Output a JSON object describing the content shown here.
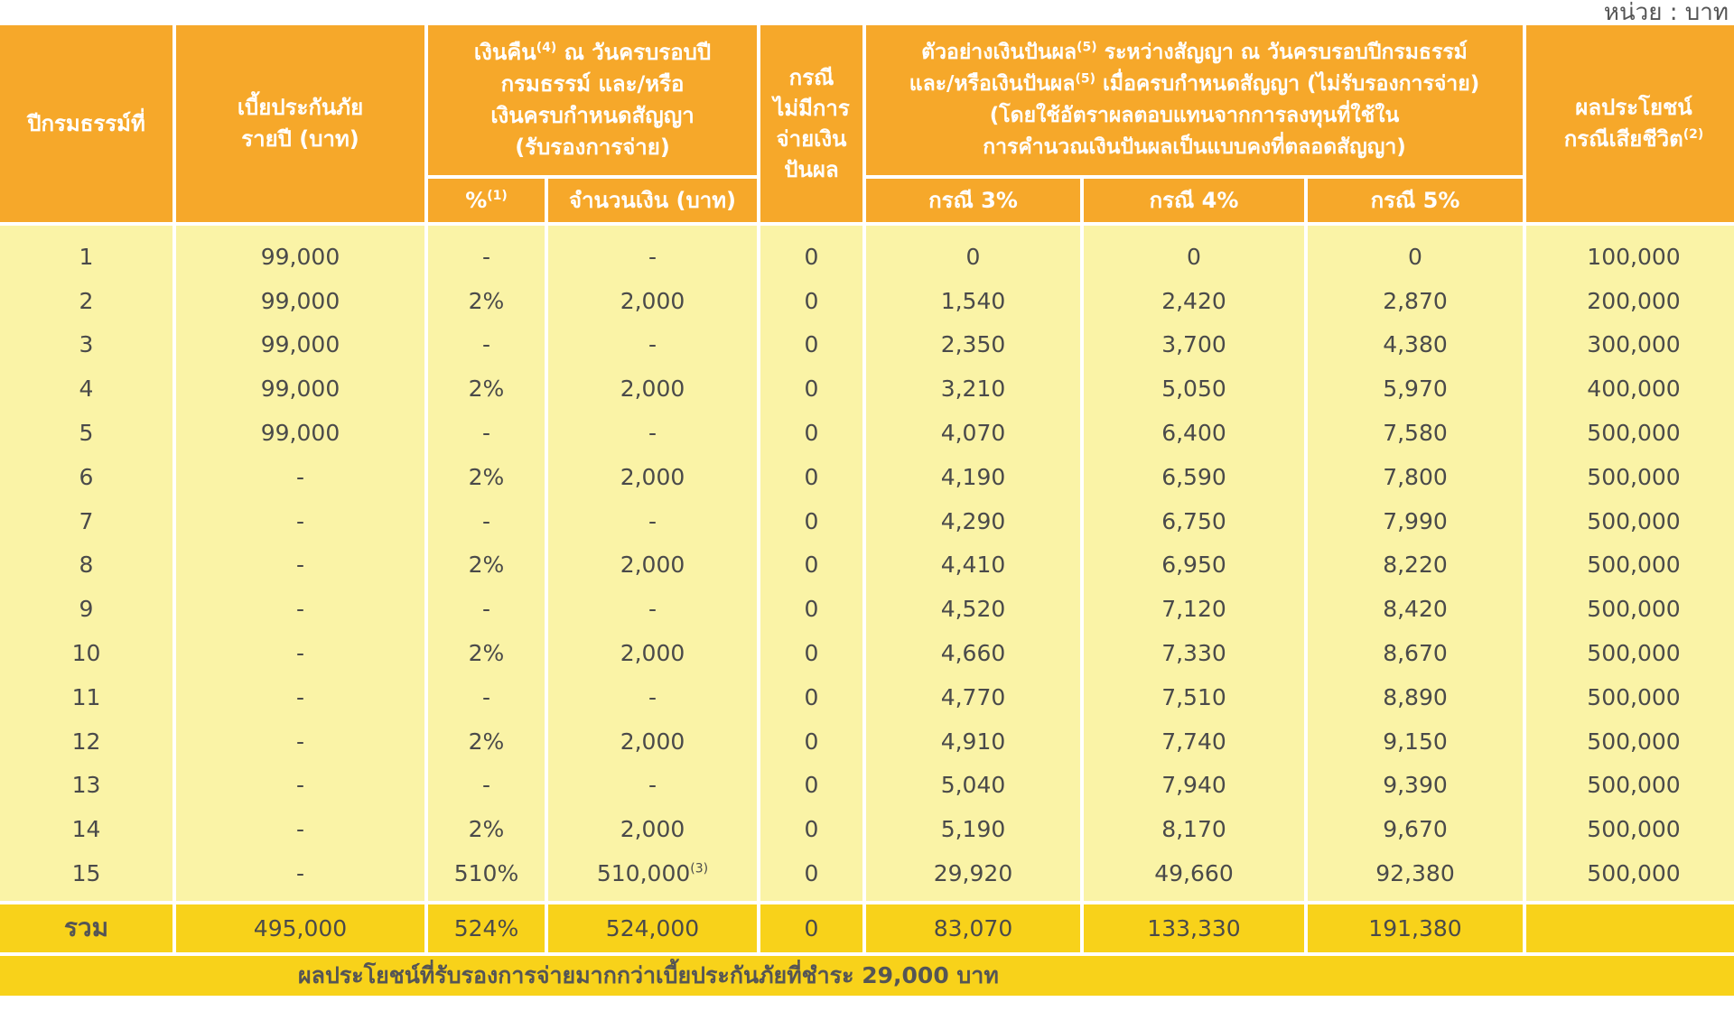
{
  "unit_label": "หน่วย : บาท",
  "headers": {
    "policy_year": "ปีกรมธรรม์ที่",
    "annual_premium": "เบี้ยประกันภัย\nรายปี (บาท)",
    "cash_back": "เงินคืน",
    "cash_back_sup": "(4)",
    "cash_back_rest": " ณ วันครบรอบปี\nกรมธรรม์ และ/หรือ\nเงินครบกำหนดสัญญา\n(รับรองการจ่าย)",
    "percent": "%",
    "percent_sup": "(1)",
    "amount": "จำนวนเงิน (บาท)",
    "no_dividend": "กรณี\nไม่มีการ\nจ่ายเงิน\nปันผล",
    "dividend_line1a": "ตัวอย่างเงินปันผล",
    "dividend_sup1": "(5)",
    "dividend_line1b": " ระหว่างสัญญา ณ วันครบรอบปีกรมธรรม์",
    "dividend_line2a": "และ/หรือเงินปันผล",
    "dividend_sup2": "(5)",
    "dividend_line2b": " เมื่อครบกำหนดสัญญา (ไม่รับรองการจ่าย)",
    "dividend_line3": "(โดยใช้อัตราผลตอบแทนจากการลงทุนที่ใช้ใน",
    "dividend_line4": "การคำนวณเงินปันผลเป็นแบบคงที่ตลอดสัญญา)",
    "case3": "กรณี 3%",
    "case4": "กรณี 4%",
    "case5": "กรณี 5%",
    "death_benefit": "ผลประโยชน์\nกรณีเสียชีวิต",
    "death_benefit_sup": "(2)"
  },
  "rows": [
    {
      "year": "1",
      "premium": "99,000",
      "pct": "-",
      "amount": "-",
      "amount_sup": "",
      "none": "0",
      "c3": "0",
      "c4": "0",
      "c5": "0",
      "death": "100,000"
    },
    {
      "year": "2",
      "premium": "99,000",
      "pct": "2%",
      "amount": "2,000",
      "amount_sup": "",
      "none": "0",
      "c3": "1,540",
      "c4": "2,420",
      "c5": "2,870",
      "death": "200,000"
    },
    {
      "year": "3",
      "premium": "99,000",
      "pct": "-",
      "amount": "-",
      "amount_sup": "",
      "none": "0",
      "c3": "2,350",
      "c4": "3,700",
      "c5": "4,380",
      "death": "300,000"
    },
    {
      "year": "4",
      "premium": "99,000",
      "pct": "2%",
      "amount": "2,000",
      "amount_sup": "",
      "none": "0",
      "c3": "3,210",
      "c4": "5,050",
      "c5": "5,970",
      "death": "400,000"
    },
    {
      "year": "5",
      "premium": "99,000",
      "pct": "-",
      "amount": "-",
      "amount_sup": "",
      "none": "0",
      "c3": "4,070",
      "c4": "6,400",
      "c5": "7,580",
      "death": "500,000"
    },
    {
      "year": "6",
      "premium": "-",
      "pct": "2%",
      "amount": "2,000",
      "amount_sup": "",
      "none": "0",
      "c3": "4,190",
      "c4": "6,590",
      "c5": "7,800",
      "death": "500,000"
    },
    {
      "year": "7",
      "premium": "-",
      "pct": "-",
      "amount": "-",
      "amount_sup": "",
      "none": "0",
      "c3": "4,290",
      "c4": "6,750",
      "c5": "7,990",
      "death": "500,000"
    },
    {
      "year": "8",
      "premium": "-",
      "pct": "2%",
      "amount": "2,000",
      "amount_sup": "",
      "none": "0",
      "c3": "4,410",
      "c4": "6,950",
      "c5": "8,220",
      "death": "500,000"
    },
    {
      "year": "9",
      "premium": "-",
      "pct": "-",
      "amount": "-",
      "amount_sup": "",
      "none": "0",
      "c3": "4,520",
      "c4": "7,120",
      "c5": "8,420",
      "death": "500,000"
    },
    {
      "year": "10",
      "premium": "-",
      "pct": "2%",
      "amount": "2,000",
      "amount_sup": "",
      "none": "0",
      "c3": "4,660",
      "c4": "7,330",
      "c5": "8,670",
      "death": "500,000"
    },
    {
      "year": "11",
      "premium": "-",
      "pct": "-",
      "amount": "-",
      "amount_sup": "",
      "none": "0",
      "c3": "4,770",
      "c4": "7,510",
      "c5": "8,890",
      "death": "500,000"
    },
    {
      "year": "12",
      "premium": "-",
      "pct": "2%",
      "amount": "2,000",
      "amount_sup": "",
      "none": "0",
      "c3": "4,910",
      "c4": "7,740",
      "c5": "9,150",
      "death": "500,000"
    },
    {
      "year": "13",
      "premium": "-",
      "pct": "-",
      "amount": "-",
      "amount_sup": "",
      "none": "0",
      "c3": "5,040",
      "c4": "7,940",
      "c5": "9,390",
      "death": "500,000"
    },
    {
      "year": "14",
      "premium": "-",
      "pct": "2%",
      "amount": "2,000",
      "amount_sup": "",
      "none": "0",
      "c3": "5,190",
      "c4": "8,170",
      "c5": "9,670",
      "death": "500,000"
    },
    {
      "year": "15",
      "premium": "-",
      "pct": "510%",
      "amount": "510,000",
      "amount_sup": "(3)",
      "none": "0",
      "c3": "29,920",
      "c4": "49,660",
      "c5": "92,380",
      "death": "500,000"
    }
  ],
  "total": {
    "label": "รวม",
    "premium": "495,000",
    "pct": "524%",
    "amount": "524,000",
    "none": "0",
    "c3": "83,070",
    "c4": "133,330",
    "c5": "191,380",
    "death": ""
  },
  "footnote": "ผลประโยชน์ที่รับรองการจ่ายมากกว่าเบี้ยประกันภัยที่ชำระ 29,000 บาท",
  "colors": {
    "header_bg": "#f6a82a",
    "row_bg": "#faf3a6",
    "total_bg": "#f8d21a"
  }
}
